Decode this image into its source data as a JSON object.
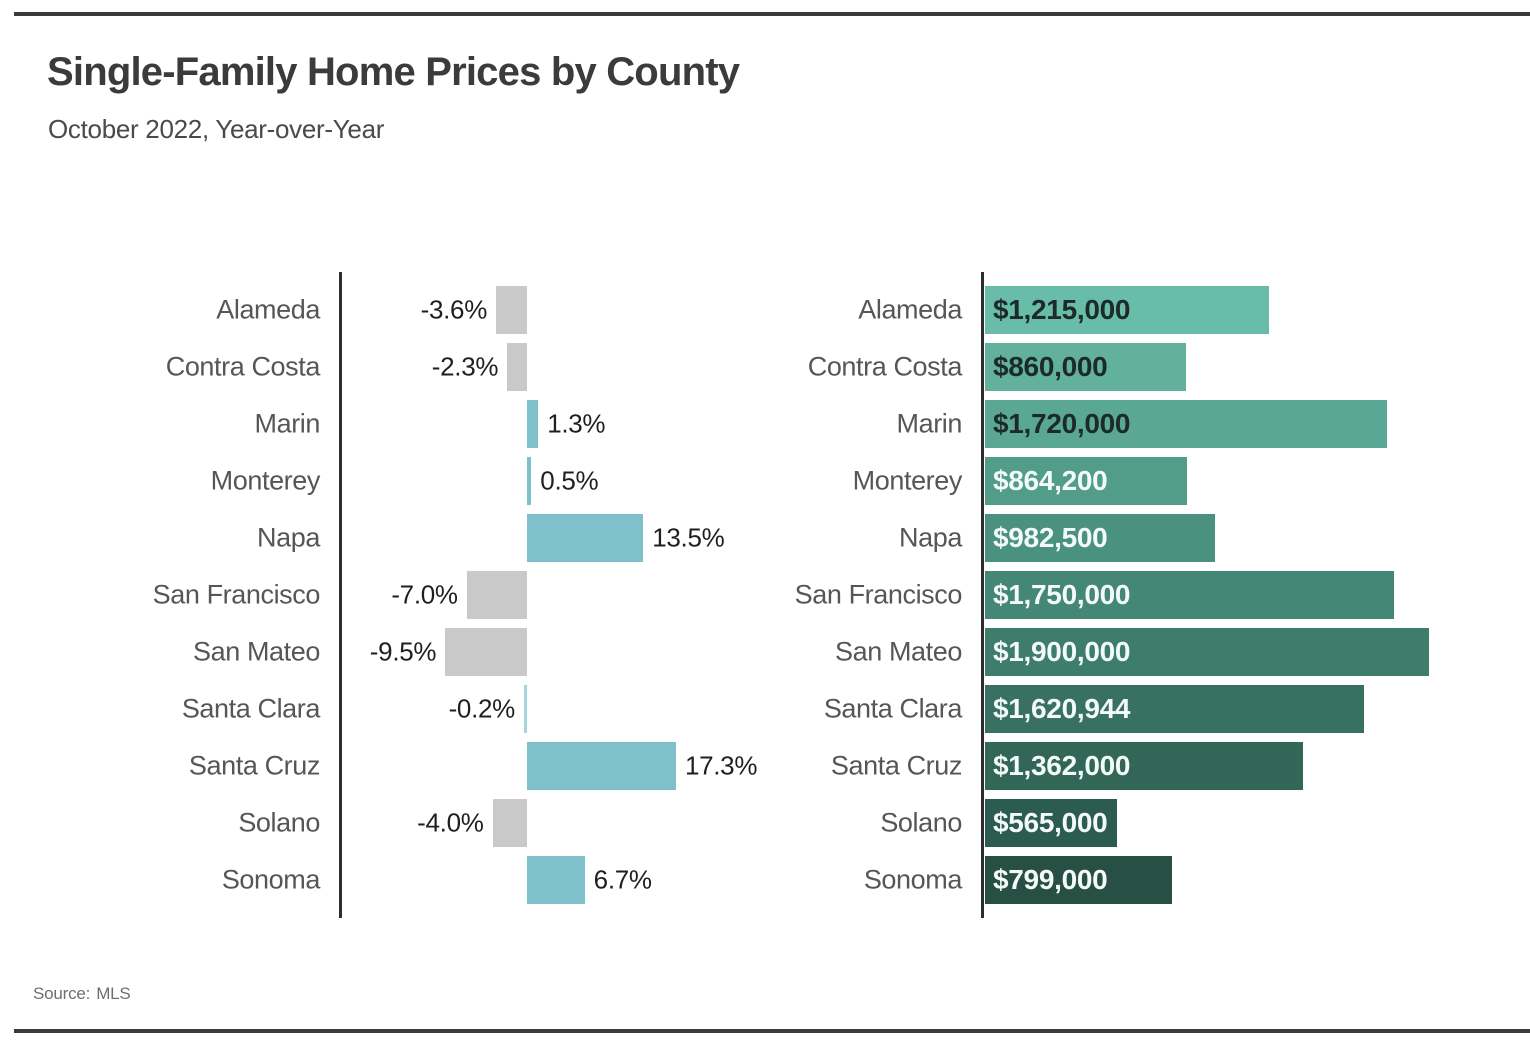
{
  "header": {
    "title": "Single-Family Home Prices by County",
    "subtitle": "October 2022, Year-over-Year"
  },
  "footer": {
    "source_label": "Source:",
    "source_value": "MLS"
  },
  "chart_data": [
    {
      "type": "bar",
      "orientation": "horizontal",
      "name": "yoy-percent-change",
      "categories": [
        "Alameda",
        "Contra Costa",
        "Marin",
        "Monterey",
        "Napa",
        "San Francisco",
        "San Mateo",
        "Santa Clara",
        "Santa Cruz",
        "Solano",
        "Sonoma"
      ],
      "values": [
        -3.6,
        -2.3,
        1.3,
        0.5,
        13.5,
        -7.0,
        -9.5,
        -0.2,
        17.3,
        -4.0,
        6.7
      ],
      "value_labels": [
        "-3.6%",
        "-2.3%",
        "1.3%",
        "0.5%",
        "13.5%",
        "-7.0%",
        "-9.5%",
        "-0.2%",
        "17.3%",
        "-4.0%",
        "6.7%"
      ],
      "bar_colors": [
        "#c9c9c9",
        "#c9c9c9",
        "#7fc1cb",
        "#7fc1cb",
        "#7fc1cb",
        "#c9c9c9",
        "#c9c9c9",
        "#a5d4da",
        "#7fc1cb",
        "#c9c9c9",
        "#7fc1cb"
      ],
      "positive_color": "#7fc1cb",
      "negative_color": "#c9c9c9",
      "xlabel": "",
      "ylabel": "",
      "grid": false,
      "value_axis": "hidden",
      "zero_baseline": true
    },
    {
      "type": "bar",
      "orientation": "horizontal",
      "name": "median-price",
      "categories": [
        "Alameda",
        "Contra Costa",
        "Marin",
        "Monterey",
        "Napa",
        "San Francisco",
        "San Mateo",
        "Santa Clara",
        "Santa Cruz",
        "Solano",
        "Sonoma"
      ],
      "values": [
        1215000,
        860000,
        1720000,
        864200,
        982500,
        1750000,
        1900000,
        1620944,
        1362000,
        565000,
        799000
      ],
      "value_labels": [
        "$1,215,000",
        "$860,000",
        "$1,720,000",
        "$864,200",
        "$982,500",
        "$1,750,000",
        "$1,900,000",
        "$1,620,944",
        "$1,362,000",
        "$565,000",
        "$799,000"
      ],
      "bar_colors": [
        "#6abcaa",
        "#62b19f",
        "#5aa795",
        "#529c8a",
        "#4b9180",
        "#448777",
        "#3e7c6c",
        "#387162",
        "#326758",
        "#2c5c4f",
        "#274f44"
      ],
      "label_colors": [
        "#1c2b27",
        "#1c2b27",
        "#1c2b27",
        "#f4faf8",
        "#f4faf8",
        "#f4faf8",
        "#f4faf8",
        "#f4faf8",
        "#f4faf8",
        "#f4faf8",
        "#f4faf8"
      ],
      "xlabel": "",
      "ylabel": "",
      "grid": false,
      "value_axis": "hidden",
      "xlim": [
        0,
        2050000
      ]
    }
  ]
}
